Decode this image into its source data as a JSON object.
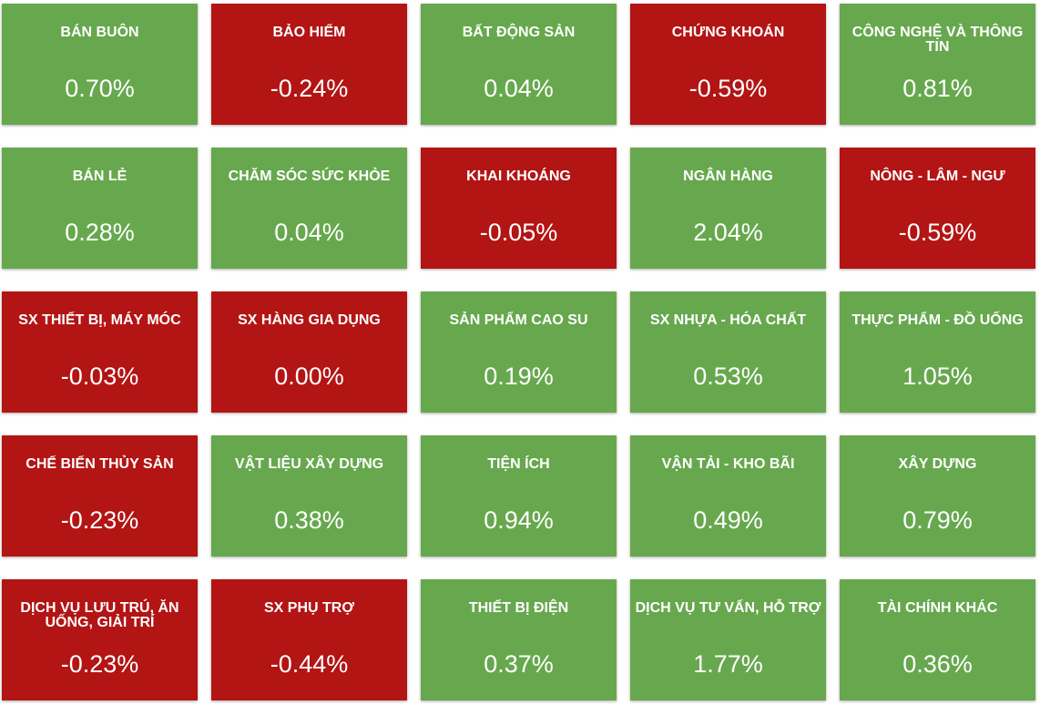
{
  "colors": {
    "up": "#67a84e",
    "down": "#b31414"
  },
  "sectors": [
    {
      "name": "BÁN BUÔN",
      "value": "0.70%",
      "trend": "up"
    },
    {
      "name": "BẢO HIỂM",
      "value": "-0.24%",
      "trend": "down"
    },
    {
      "name": "BẤT ĐỘNG SẢN",
      "value": "0.04%",
      "trend": "up"
    },
    {
      "name": "CHỨNG KHOÁN",
      "value": "-0.59%",
      "trend": "down"
    },
    {
      "name": "CÔNG NGHỆ VÀ THÔNG TIN",
      "value": "0.81%",
      "trend": "up"
    },
    {
      "name": "BÁN LẺ",
      "value": "0.28%",
      "trend": "up"
    },
    {
      "name": "CHĂM SÓC SỨC KHỎE",
      "value": "0.04%",
      "trend": "up"
    },
    {
      "name": "KHAI KHOÁNG",
      "value": "-0.05%",
      "trend": "down"
    },
    {
      "name": "NGÂN HÀNG",
      "value": "2.04%",
      "trend": "up"
    },
    {
      "name": "NÔNG - LÂM - NGƯ",
      "value": "-0.59%",
      "trend": "down"
    },
    {
      "name": "SX THIẾT BỊ, MÁY MÓC",
      "value": "-0.03%",
      "trend": "down"
    },
    {
      "name": "SX HÀNG GIA DỤNG",
      "value": "0.00%",
      "trend": "down"
    },
    {
      "name": "SẢN PHẨM CAO SU",
      "value": "0.19%",
      "trend": "up"
    },
    {
      "name": "SX NHỰA - HÓA CHẤT",
      "value": "0.53%",
      "trend": "up"
    },
    {
      "name": "THỰC PHẨM - ĐỒ UỐNG",
      "value": "1.05%",
      "trend": "up"
    },
    {
      "name": "CHẾ BIẾN THỦY SẢN",
      "value": "-0.23%",
      "trend": "down"
    },
    {
      "name": "VẬT LIỆU XÂY DỰNG",
      "value": "0.38%",
      "trend": "up"
    },
    {
      "name": "TIỆN ÍCH",
      "value": "0.94%",
      "trend": "up"
    },
    {
      "name": "VẬN TẢI - KHO BÃI",
      "value": "0.49%",
      "trend": "up"
    },
    {
      "name": "XÂY DỰNG",
      "value": "0.79%",
      "trend": "up"
    },
    {
      "name": "DỊCH VỤ LƯU TRÚ, ĂN UỐNG, GIẢI TRÍ",
      "value": "-0.23%",
      "trend": "down"
    },
    {
      "name": "SX PHỤ TRỢ",
      "value": "-0.44%",
      "trend": "down"
    },
    {
      "name": "THIẾT BỊ ĐIỆN",
      "value": "0.37%",
      "trend": "up"
    },
    {
      "name": "DỊCH VỤ TƯ VẤN, HỖ TRỢ",
      "value": "1.77%",
      "trend": "up"
    },
    {
      "name": "TÀI CHÍNH KHÁC",
      "value": "0.36%",
      "trend": "up"
    }
  ]
}
